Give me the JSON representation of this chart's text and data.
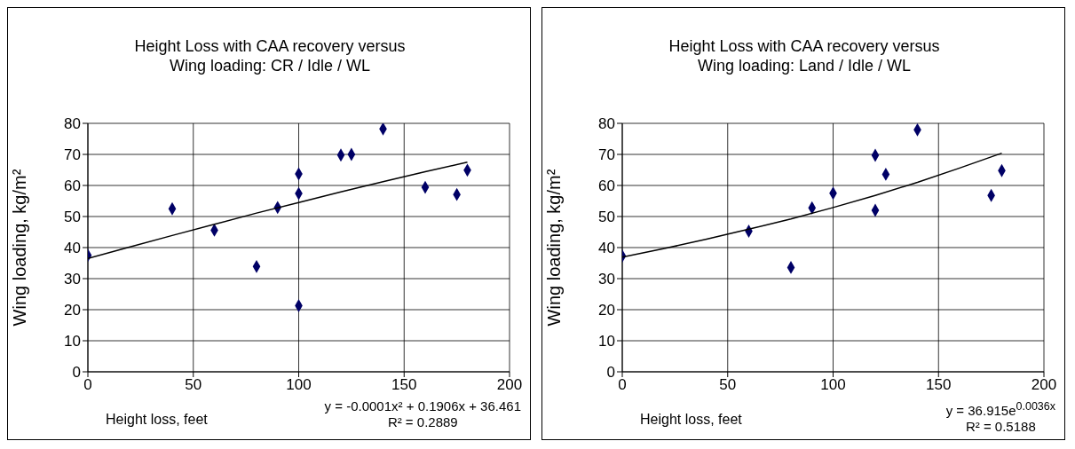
{
  "chart_data": [
    {
      "type": "scatter",
      "title": "Height Loss with CAA recovery versus Wing loading:  CR / Idle / WL",
      "xlabel": "Height loss, feet",
      "ylabel": "Wing loading, kg/m²",
      "xlim": [
        0,
        200
      ],
      "xticks": [
        0,
        50,
        100,
        150,
        200
      ],
      "ylim": [
        0,
        80
      ],
      "yticks": [
        0,
        10,
        20,
        30,
        40,
        50,
        60,
        70,
        80
      ],
      "grid": true,
      "annotations": [
        "y = -0.0001x² + 0.1906x + 36.461",
        "R² = 0.2889"
      ],
      "series": [
        {
          "color": "#000066",
          "marker": "diamond",
          "x": [
            0,
            40,
            60,
            80,
            90,
            100,
            100,
            100,
            120,
            125,
            140,
            160,
            175,
            180
          ],
          "values": [
            37.5,
            52.5,
            45.6,
            33.9,
            52.9,
            63.7,
            57.4,
            21.3,
            69.8,
            70.0,
            78.2,
            59.4,
            57.1,
            64.9
          ]
        },
        {
          "type": "line",
          "color": "#000000",
          "marker": "none",
          "line_style": "solid",
          "x": [
            0,
            20,
            40,
            60,
            80,
            100,
            120,
            140,
            160,
            180
          ],
          "values": [
            36.5,
            40.2,
            43.9,
            47.5,
            51.1,
            54.5,
            57.9,
            61.2,
            64.4,
            67.5
          ]
        }
      ]
    },
    {
      "type": "scatter",
      "title": "Height Loss with CAA recovery versus Wing loading:  Land / Idle / WL",
      "xlabel": "Height loss, feet",
      "ylabel": "Wing loading, kg/m²",
      "xlim": [
        0,
        200
      ],
      "xticks": [
        0,
        50,
        100,
        150,
        200
      ],
      "ylim": [
        0,
        80
      ],
      "yticks": [
        0,
        10,
        20,
        30,
        40,
        50,
        60,
        70,
        80
      ],
      "grid": true,
      "annotations": [
        "y = 36.915e$^{0.0036x}$",
        "R² = 0.5188"
      ],
      "series": [
        {
          "color": "#000066",
          "marker": "diamond",
          "x": [
            0,
            60,
            80,
            90,
            100,
            120,
            120,
            125,
            140,
            175,
            180
          ],
          "values": [
            37.3,
            45.3,
            33.6,
            52.8,
            57.5,
            69.7,
            52.0,
            63.6,
            77.9,
            56.8,
            64.8
          ]
        },
        {
          "type": "line",
          "color": "#000000",
          "marker": "none",
          "line_style": "solid",
          "x": [
            0,
            20,
            40,
            60,
            80,
            100,
            120,
            140,
            160,
            180
          ],
          "values": [
            36.9,
            39.7,
            42.7,
            45.9,
            49.2,
            52.9,
            56.8,
            61.0,
            65.6,
            70.4
          ]
        }
      ]
    }
  ]
}
